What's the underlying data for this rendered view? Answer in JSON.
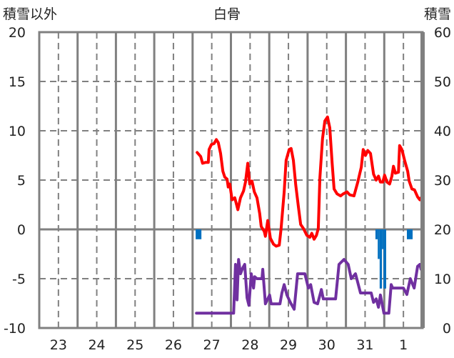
{
  "chart_data": {
    "type": "line",
    "title": "白骨",
    "ylabel_left": "積雪以外",
    "ylabel_right": "積雪",
    "ylim_left": [
      -10,
      20
    ],
    "ylim_right": [
      0,
      60
    ],
    "yticks_left": [
      "20",
      "15",
      "10",
      "5",
      "0",
      "-5",
      "-10"
    ],
    "yticks_right": [
      "60",
      "50",
      "40",
      "30",
      "20",
      "10",
      "0"
    ],
    "x_unit": "days since the start of 23 (category centers at +0.5)",
    "xlim": [
      0,
      10
    ],
    "x_tick_labels": [
      "23",
      "24",
      "25",
      "26",
      "27",
      "28",
      "29",
      "30",
      "31",
      "1"
    ],
    "grid": true,
    "colors": {
      "temperature": "#ff0000",
      "snow_depth": "#7030a0",
      "precipitation": "#0070c0",
      "grid": "#808080"
    },
    "series": [
      {
        "name": "temperature",
        "axis": "left",
        "points": [
          [
            4.12,
            7.8
          ],
          [
            4.21,
            7.4
          ],
          [
            4.26,
            6.7
          ],
          [
            4.34,
            6.8
          ],
          [
            4.41,
            6.8
          ],
          [
            4.43,
            8.1
          ],
          [
            4.49,
            8.6
          ],
          [
            4.56,
            8.7
          ],
          [
            4.62,
            9.1
          ],
          [
            4.67,
            8.8
          ],
          [
            4.73,
            7.7
          ],
          [
            4.79,
            5.9
          ],
          [
            4.84,
            5.3
          ],
          [
            4.9,
            5.1
          ],
          [
            4.93,
            4.3
          ],
          [
            4.97,
            4.6
          ],
          [
            5.03,
            3.0
          ],
          [
            5.1,
            3.2
          ],
          [
            5.18,
            2.0
          ],
          [
            5.25,
            3.2
          ],
          [
            5.33,
            3.9
          ],
          [
            5.38,
            4.8
          ],
          [
            5.44,
            6.7
          ],
          [
            5.49,
            4.6
          ],
          [
            5.55,
            4.9
          ],
          [
            5.61,
            3.8
          ],
          [
            5.68,
            3.2
          ],
          [
            5.75,
            1.6
          ],
          [
            5.79,
            0.3
          ],
          [
            5.87,
            -0.2
          ],
          [
            5.9,
            -0.7
          ],
          [
            5.96,
            0.9
          ],
          [
            6.03,
            -0.9
          ],
          [
            6.11,
            -1.5
          ],
          [
            6.18,
            -1.7
          ],
          [
            6.26,
            -1.6
          ],
          [
            6.31,
            0.1
          ],
          [
            6.39,
            3.8
          ],
          [
            6.44,
            7.0
          ],
          [
            6.52,
            8.1
          ],
          [
            6.57,
            8.2
          ],
          [
            6.63,
            7.0
          ],
          [
            6.69,
            4.5
          ],
          [
            6.76,
            2.3
          ],
          [
            6.82,
            0.5
          ],
          [
            6.89,
            0.1
          ],
          [
            6.98,
            -0.6
          ],
          [
            7.06,
            -0.8
          ],
          [
            7.11,
            -0.4
          ],
          [
            7.17,
            -1.0
          ],
          [
            7.23,
            -0.6
          ],
          [
            7.28,
            0.1
          ],
          [
            7.32,
            5.2
          ],
          [
            7.39,
            9.2
          ],
          [
            7.45,
            11.0
          ],
          [
            7.52,
            11.4
          ],
          [
            7.58,
            10.3
          ],
          [
            7.64,
            6.7
          ],
          [
            7.69,
            4.1
          ],
          [
            7.77,
            3.6
          ],
          [
            7.86,
            3.4
          ],
          [
            7.93,
            3.6
          ],
          [
            8.03,
            3.8
          ],
          [
            8.1,
            3.5
          ],
          [
            8.21,
            3.4
          ],
          [
            8.31,
            4.8
          ],
          [
            8.4,
            6.3
          ],
          [
            8.45,
            8.1
          ],
          [
            8.51,
            7.5
          ],
          [
            8.57,
            8.0
          ],
          [
            8.64,
            7.7
          ],
          [
            8.72,
            5.6
          ],
          [
            8.79,
            5.0
          ],
          [
            8.85,
            5.4
          ],
          [
            8.9,
            4.8
          ],
          [
            8.96,
            4.8
          ],
          [
            9.01,
            5.5
          ],
          [
            9.07,
            4.8
          ],
          [
            9.14,
            4.6
          ],
          [
            9.2,
            5.4
          ],
          [
            9.24,
            6.4
          ],
          [
            9.29,
            5.7
          ],
          [
            9.37,
            5.8
          ],
          [
            9.4,
            8.5
          ],
          [
            9.46,
            8.1
          ],
          [
            9.53,
            7.0
          ],
          [
            9.61,
            5.9
          ],
          [
            9.65,
            4.9
          ],
          [
            9.72,
            4.1
          ],
          [
            9.79,
            4.0
          ],
          [
            9.87,
            3.3
          ],
          [
            9.93,
            3.0
          ],
          [
            9.96,
            3.2
          ]
        ]
      },
      {
        "name": "snow_depth",
        "axis": "right",
        "points": [
          [
            4.1,
            3.0
          ],
          [
            5.07,
            3.0
          ],
          [
            5.12,
            12.9
          ],
          [
            5.16,
            5.7
          ],
          [
            5.2,
            13.9
          ],
          [
            5.25,
            11.0
          ],
          [
            5.31,
            12.2
          ],
          [
            5.36,
            12.9
          ],
          [
            5.42,
            6.1
          ],
          [
            5.47,
            4.6
          ],
          [
            5.53,
            11.0
          ],
          [
            5.59,
            8.1
          ],
          [
            5.62,
            10.4
          ],
          [
            5.68,
            10.0
          ],
          [
            5.81,
            10.0
          ],
          [
            5.83,
            11.9
          ],
          [
            5.9,
            4.9
          ],
          [
            6.01,
            6.7
          ],
          [
            6.05,
            4.9
          ],
          [
            6.28,
            4.9
          ],
          [
            6.33,
            7.1
          ],
          [
            6.39,
            8.8
          ],
          [
            6.46,
            6.7
          ],
          [
            6.55,
            5.2
          ],
          [
            6.65,
            3.8
          ],
          [
            6.74,
            11.0
          ],
          [
            6.93,
            11.0
          ],
          [
            7.02,
            8.1
          ],
          [
            7.08,
            8.8
          ],
          [
            7.17,
            5.2
          ],
          [
            7.26,
            4.9
          ],
          [
            7.36,
            7.8
          ],
          [
            7.41,
            5.9
          ],
          [
            7.73,
            5.9
          ],
          [
            7.82,
            12.9
          ],
          [
            7.95,
            13.9
          ],
          [
            8.06,
            12.9
          ],
          [
            8.14,
            10.0
          ],
          [
            8.25,
            11.0
          ],
          [
            8.38,
            7.1
          ],
          [
            8.66,
            7.1
          ],
          [
            8.72,
            5.2
          ],
          [
            8.79,
            5.9
          ],
          [
            8.85,
            4.2
          ],
          [
            8.9,
            6.7
          ],
          [
            8.99,
            3.0
          ],
          [
            9.12,
            3.0
          ],
          [
            9.18,
            8.8
          ],
          [
            9.22,
            8.1
          ],
          [
            9.5,
            8.1
          ],
          [
            9.59,
            6.8
          ],
          [
            9.68,
            10.0
          ],
          [
            9.78,
            8.1
          ],
          [
            9.87,
            12.5
          ],
          [
            9.93,
            12.9
          ],
          [
            9.96,
            11.9
          ]
        ]
      },
      {
        "name": "precipitation",
        "type": "bar",
        "axis": "left",
        "bars": [
          [
            4.08,
            4.23,
            -1.0
          ],
          [
            8.77,
            8.83,
            -1.0
          ],
          [
            8.83,
            8.88,
            -3.0
          ],
          [
            8.88,
            8.94,
            -6.0
          ],
          [
            8.94,
            8.98,
            -2.0
          ],
          [
            8.98,
            9.05,
            -6.0
          ],
          [
            9.59,
            9.74,
            -1.0
          ]
        ]
      }
    ]
  }
}
